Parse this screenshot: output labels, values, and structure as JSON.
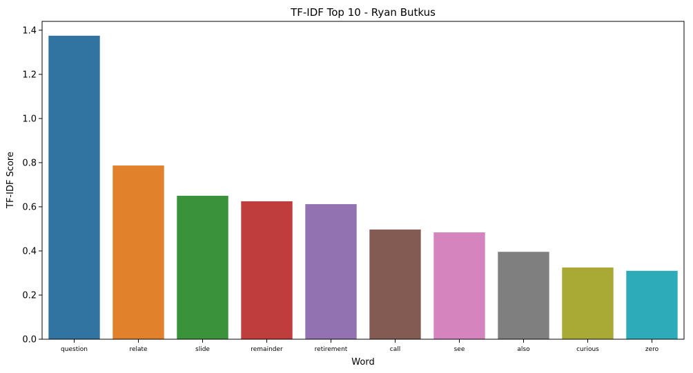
{
  "chart_data": {
    "type": "bar",
    "title": "TF-IDF Top 10 - Ryan Butkus",
    "xlabel": "Word",
    "ylabel": "TF-IDF Score",
    "categories": [
      "question",
      "relate",
      "slide",
      "remainder",
      "retirement",
      "call",
      "see",
      "also",
      "curious",
      "zero"
    ],
    "values": [
      1.375,
      0.787,
      0.65,
      0.625,
      0.612,
      0.497,
      0.484,
      0.396,
      0.325,
      0.31
    ],
    "colors": [
      "#3274a1",
      "#e1812c",
      "#3a923a",
      "#c03d3e",
      "#9372b2",
      "#845b53",
      "#d684bd",
      "#7f7f7f",
      "#a9aa35",
      "#2eabb8"
    ],
    "ylim": [
      0,
      1.44
    ],
    "yticks": [
      "0.0",
      "0.2",
      "0.4",
      "0.6",
      "0.8",
      "1.0",
      "1.2",
      "1.4"
    ],
    "grid": false,
    "legend": "none"
  }
}
